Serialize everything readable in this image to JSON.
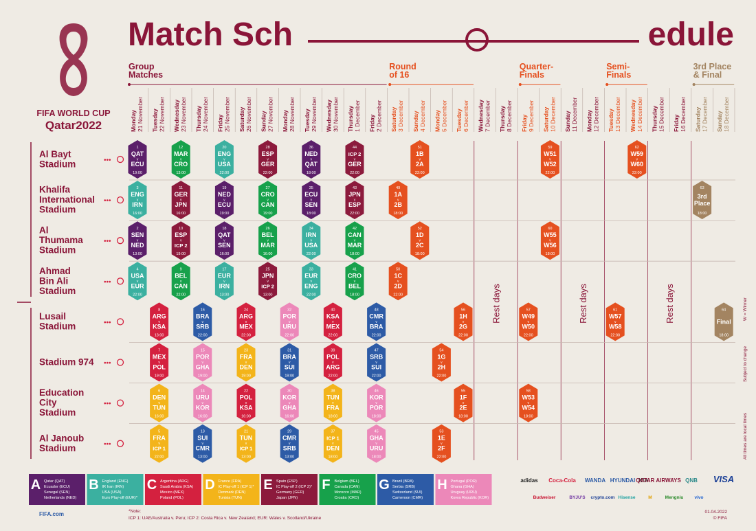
{
  "title": {
    "left": "Match Sch",
    "right": "edule"
  },
  "logo": {
    "line1": "FIFA WORLD CUP",
    "line2": "Qatar2022"
  },
  "stages": [
    {
      "label": [
        "Group",
        "Matches"
      ],
      "start": 0,
      "end": 11,
      "color": "#8a1538"
    },
    {
      "label": [
        "Round",
        "of 16"
      ],
      "start": 12,
      "end": 15,
      "color": "#e5501f"
    },
    {
      "label": [
        "Quarter-",
        "Finals"
      ],
      "start": 18,
      "end": 19,
      "color": "#e5501f"
    },
    {
      "label": [
        "Semi-",
        "Finals"
      ],
      "start": 22,
      "end": 23,
      "color": "#e5501f"
    },
    {
      "label": [
        "3rd Place",
        "& Final"
      ],
      "start": 26,
      "end": 27,
      "color": "#a38461"
    }
  ],
  "dates": [
    {
      "weekday": "Monday",
      "date": "21 November",
      "color": "#8a1538"
    },
    {
      "weekday": "Tuesday",
      "date": "22 November",
      "color": "#8a1538"
    },
    {
      "weekday": "Wednesday",
      "date": "23 November",
      "color": "#8a1538"
    },
    {
      "weekday": "Thursday",
      "date": "24 November",
      "color": "#8a1538"
    },
    {
      "weekday": "Friday",
      "date": "25 November",
      "color": "#8a1538"
    },
    {
      "weekday": "Saturday",
      "date": "26 November",
      "color": "#8a1538"
    },
    {
      "weekday": "Sunday",
      "date": "27 November",
      "color": "#8a1538"
    },
    {
      "weekday": "Monday",
      "date": "28 November",
      "color": "#8a1538"
    },
    {
      "weekday": "Tuesday",
      "date": "29 November",
      "color": "#8a1538"
    },
    {
      "weekday": "Wednesday",
      "date": "30 November",
      "color": "#8a1538"
    },
    {
      "weekday": "Thursday",
      "date": "1 December",
      "color": "#8a1538"
    },
    {
      "weekday": "Friday",
      "date": "2 December",
      "color": "#8a1538"
    },
    {
      "weekday": "Saturday",
      "date": "3 December",
      "color": "#e5501f"
    },
    {
      "weekday": "Sunday",
      "date": "4 December",
      "color": "#e5501f"
    },
    {
      "weekday": "Monday",
      "date": "5 December",
      "color": "#e5501f"
    },
    {
      "weekday": "Tuesday",
      "date": "6 December",
      "color": "#e5501f"
    },
    {
      "weekday": "Wednesday",
      "date": "7 December",
      "color": "#8a1538"
    },
    {
      "weekday": "Thursday",
      "date": "8 December",
      "color": "#8a1538"
    },
    {
      "weekday": "Friday",
      "date": "9 December",
      "color": "#e5501f"
    },
    {
      "weekday": "Saturday",
      "date": "10 December",
      "color": "#e5501f"
    },
    {
      "weekday": "Sunday",
      "date": "11 December",
      "color": "#8a1538"
    },
    {
      "weekday": "Monday",
      "date": "12 December",
      "color": "#8a1538"
    },
    {
      "weekday": "Tuesday",
      "date": "13 December",
      "color": "#e5501f"
    },
    {
      "weekday": "Wednesday",
      "date": "14 December",
      "color": "#e5501f"
    },
    {
      "weekday": "Thursday",
      "date": "15 December",
      "color": "#8a1538"
    },
    {
      "weekday": "Friday",
      "date": "16 December",
      "color": "#8a1538"
    },
    {
      "weekday": "Saturday",
      "date": "17 December",
      "color": "#a38461"
    },
    {
      "weekday": "Sunday",
      "date": "18 December",
      "color": "#a38461"
    }
  ],
  "versus": "v",
  "stadiums": [
    {
      "name": [
        "Al Bayt",
        "Stadium"
      ],
      "matches": [
        {
          "no": 1,
          "day": 0,
          "team1": "QAT",
          "team2": "ECU",
          "time": "19:00",
          "color": "#5b1f6a"
        },
        {
          "no": 12,
          "day": 2,
          "team1": "MAR",
          "team2": "CRO",
          "time": "13:00",
          "color": "#17a14b"
        },
        {
          "no": 20,
          "day": 4,
          "team1": "ENG",
          "team2": "USA",
          "time": "22:00",
          "color": "#3bb0a0"
        },
        {
          "no": 28,
          "day": 6,
          "team1": "ESP",
          "team2": "GER",
          "time": "22:00",
          "color": "#8c1a3c"
        },
        {
          "no": 36,
          "day": 8,
          "team1": "NED",
          "team2": "QAT",
          "time": "18:00",
          "color": "#5b1f6a"
        },
        {
          "no": 44,
          "day": 10,
          "team1": "ICP 2",
          "team2": "GER",
          "time": "22:00",
          "color": "#8c1a3c"
        },
        {
          "no": 51,
          "day": 13,
          "team1": "1B",
          "team2": "2A",
          "time": "22:00",
          "color": "#e5501f"
        },
        {
          "no": 59,
          "day": 19,
          "team1": "W51",
          "team2": "W52",
          "time": "22:00",
          "color": "#e5501f"
        },
        {
          "no": 62,
          "day": 23,
          "team1": "W59",
          "team2": "W60",
          "time": "22:00",
          "color": "#e5501f"
        }
      ]
    },
    {
      "name": [
        "Khalifa",
        "International",
        "Stadium"
      ],
      "matches": [
        {
          "no": 3,
          "day": 0,
          "team1": "ENG",
          "team2": "IRN",
          "time": "16:00",
          "color": "#3bb0a0"
        },
        {
          "no": 11,
          "day": 2,
          "team1": "GER",
          "team2": "JPN",
          "time": "16:00",
          "color": "#8c1a3c"
        },
        {
          "no": 19,
          "day": 4,
          "team1": "NED",
          "team2": "ECU",
          "time": "19:00",
          "color": "#5b1f6a"
        },
        {
          "no": 27,
          "day": 6,
          "team1": "CRO",
          "team2": "CAN",
          "time": "19:00",
          "color": "#17a14b"
        },
        {
          "no": 35,
          "day": 8,
          "team1": "ECU",
          "team2": "SEN",
          "time": "18:00",
          "color": "#5b1f6a"
        },
        {
          "no": 43,
          "day": 10,
          "team1": "JPN",
          "team2": "ESP",
          "time": "22:00",
          "color": "#8c1a3c"
        },
        {
          "no": 49,
          "day": 12,
          "team1": "1A",
          "team2": "2B",
          "time": "18:00",
          "color": "#e5501f"
        },
        {
          "no": 63,
          "day": 26,
          "label": [
            "3rd",
            "Place"
          ],
          "time": "18:00",
          "color": "#a38461"
        }
      ]
    },
    {
      "name": [
        "Al",
        "Thumama",
        "Stadium"
      ],
      "matches": [
        {
          "no": 2,
          "day": 0,
          "team1": "SEN",
          "team2": "NED",
          "time": "13:00",
          "color": "#5b1f6a"
        },
        {
          "no": 10,
          "day": 2,
          "team1": "ESP",
          "team2": "ICP 2",
          "time": "19:00",
          "color": "#8c1a3c"
        },
        {
          "no": 18,
          "day": 4,
          "team1": "QAT",
          "team2": "SEN",
          "time": "16:00",
          "color": "#5b1f6a"
        },
        {
          "no": 26,
          "day": 6,
          "team1": "BEL",
          "team2": "MAR",
          "time": "16:00",
          "color": "#17a14b"
        },
        {
          "no": 34,
          "day": 8,
          "team1": "IRN",
          "team2": "USA",
          "time": "22:00",
          "color": "#3bb0a0"
        },
        {
          "no": 42,
          "day": 10,
          "team1": "CAN",
          "team2": "MAR",
          "time": "18:00",
          "color": "#17a14b"
        },
        {
          "no": 52,
          "day": 13,
          "team1": "1D",
          "team2": "2C",
          "time": "18:00",
          "color": "#e5501f"
        },
        {
          "no": 60,
          "day": 19,
          "team1": "W55",
          "team2": "W56",
          "time": "18:00",
          "color": "#e5501f"
        }
      ]
    },
    {
      "name": [
        "Ahmad",
        "Bin Ali",
        "Stadium"
      ],
      "matches": [
        {
          "no": 4,
          "day": 0,
          "team1": "USA",
          "team2": "EUR",
          "time": "22:00",
          "color": "#3bb0a0"
        },
        {
          "no": 9,
          "day": 2,
          "team1": "BEL",
          "team2": "CAN",
          "time": "22:00",
          "color": "#17a14b"
        },
        {
          "no": 17,
          "day": 4,
          "team1": "EUR",
          "team2": "IRN",
          "time": "13:00",
          "color": "#3bb0a0"
        },
        {
          "no": 25,
          "day": 6,
          "team1": "JPN",
          "team2": "ICP 2",
          "time": "13:00",
          "color": "#8c1a3c"
        },
        {
          "no": 33,
          "day": 8,
          "team1": "EUR",
          "team2": "ENG",
          "time": "22:00",
          "color": "#3bb0a0"
        },
        {
          "no": 41,
          "day": 10,
          "team1": "CRO",
          "team2": "BEL",
          "time": "18:00",
          "color": "#17a14b"
        },
        {
          "no": 50,
          "day": 12,
          "team1": "1C",
          "team2": "2D",
          "time": "22:00",
          "color": "#e5501f"
        }
      ]
    },
    {
      "name": [
        "Lusail",
        "Stadium"
      ],
      "matches": [
        {
          "no": 8,
          "day": 1,
          "team1": "ARG",
          "team2": "KSA",
          "time": "13:00",
          "color": "#d4213f"
        },
        {
          "no": 16,
          "day": 3,
          "team1": "BRA",
          "team2": "SRB",
          "time": "22:00",
          "color": "#2d5ba6"
        },
        {
          "no": 24,
          "day": 5,
          "team1": "ARG",
          "team2": "MEX",
          "time": "22:00",
          "color": "#d4213f"
        },
        {
          "no": 32,
          "day": 7,
          "team1": "POR",
          "team2": "URU",
          "time": "22:00",
          "color": "#ec88b9"
        },
        {
          "no": 40,
          "day": 9,
          "team1": "KSA",
          "team2": "MEX",
          "time": "22:00",
          "color": "#d4213f"
        },
        {
          "no": 48,
          "day": 11,
          "team1": "CMR",
          "team2": "BRA",
          "time": "22:00",
          "color": "#2d5ba6"
        },
        {
          "no": 56,
          "day": 15,
          "team1": "1H",
          "team2": "2G",
          "time": "22:00",
          "color": "#e5501f"
        },
        {
          "no": 57,
          "day": 18,
          "team1": "W49",
          "team2": "W50",
          "time": "22:00",
          "color": "#e5501f"
        },
        {
          "no": 61,
          "day": 22,
          "team1": "W57",
          "team2": "W58",
          "time": "22:00",
          "color": "#e5501f"
        },
        {
          "no": 64,
          "day": 27,
          "label": [
            "Final"
          ],
          "time": "18:00",
          "color": "#a38461"
        }
      ]
    },
    {
      "name": [
        "Stadium 974"
      ],
      "matches": [
        {
          "no": 7,
          "day": 1,
          "team1": "MEX",
          "team2": "POL",
          "time": "19:00",
          "color": "#d4213f"
        },
        {
          "no": 15,
          "day": 3,
          "team1": "POR",
          "team2": "GHA",
          "time": "19:00",
          "color": "#ec88b9"
        },
        {
          "no": 23,
          "day": 5,
          "team1": "FRA",
          "team2": "DEN",
          "time": "19:00",
          "color": "#f3b41a"
        },
        {
          "no": 31,
          "day": 7,
          "team1": "BRA",
          "team2": "SUI",
          "time": "19:00",
          "color": "#2d5ba6"
        },
        {
          "no": 39,
          "day": 9,
          "team1": "POL",
          "team2": "ARG",
          "time": "22:00",
          "color": "#d4213f"
        },
        {
          "no": 47,
          "day": 11,
          "team1": "SRB",
          "team2": "SUI",
          "time": "22:00",
          "color": "#2d5ba6"
        },
        {
          "no": 54,
          "day": 14,
          "team1": "1G",
          "team2": "2H",
          "time": "22:00",
          "color": "#e5501f"
        }
      ]
    },
    {
      "name": [
        "Education",
        "City",
        "Stadium"
      ],
      "matches": [
        {
          "no": 6,
          "day": 1,
          "team1": "DEN",
          "team2": "TUN",
          "time": "16:00",
          "color": "#f3b41a"
        },
        {
          "no": 14,
          "day": 3,
          "team1": "URU",
          "team2": "KOR",
          "time": "16:00",
          "color": "#ec88b9"
        },
        {
          "no": 22,
          "day": 5,
          "team1": "POL",
          "team2": "KSA",
          "time": "16:00",
          "color": "#d4213f"
        },
        {
          "no": 30,
          "day": 7,
          "team1": "KOR",
          "team2": "GHA",
          "time": "16:00",
          "color": "#ec88b9"
        },
        {
          "no": 38,
          "day": 9,
          "team1": "TUN",
          "team2": "FRA",
          "time": "18:00",
          "color": "#f3b41a"
        },
        {
          "no": 46,
          "day": 11,
          "team1": "KOR",
          "team2": "POR",
          "time": "18:00",
          "color": "#ec88b9"
        },
        {
          "no": 55,
          "day": 15,
          "team1": "1F",
          "team2": "2E",
          "time": "18:00",
          "color": "#e5501f"
        },
        {
          "no": 58,
          "day": 18,
          "team1": "W53",
          "team2": "W54",
          "time": "18:00",
          "color": "#e5501f"
        }
      ]
    },
    {
      "name": [
        "Al Janoub",
        "Stadium"
      ],
      "matches": [
        {
          "no": 5,
          "day": 1,
          "team1": "FRA",
          "team2": "ICP 1",
          "time": "22:00",
          "color": "#f3b41a"
        },
        {
          "no": 13,
          "day": 3,
          "team1": "SUI",
          "team2": "CMR",
          "time": "13:00",
          "color": "#2d5ba6"
        },
        {
          "no": 21,
          "day": 5,
          "team1": "TUN",
          "team2": "ICP 1",
          "time": "13:00",
          "color": "#f3b41a"
        },
        {
          "no": 29,
          "day": 7,
          "team1": "CMR",
          "team2": "SRB",
          "time": "13:00",
          "color": "#2d5ba6"
        },
        {
          "no": 37,
          "day": 9,
          "team1": "ICP 1",
          "team2": "DEN",
          "time": "18:00",
          "color": "#f3b41a"
        },
        {
          "no": 45,
          "day": 11,
          "team1": "GHA",
          "team2": "URU",
          "time": "18:00",
          "color": "#ec88b9"
        },
        {
          "no": 53,
          "day": 14,
          "team1": "1E",
          "team2": "2F",
          "time": "22:00",
          "color": "#e5501f"
        }
      ]
    }
  ],
  "rest_days": {
    "label": "Rest days",
    "days": [
      [
        16,
        17
      ],
      [
        20,
        21
      ],
      [
        24,
        25
      ]
    ]
  },
  "groups": [
    {
      "letter": "A",
      "color": "#5b1f6a",
      "teams": [
        "Qatar (QAT)",
        "Ecuador (ECU)",
        "Senegal (SEN)",
        "Netherlands (NED)"
      ]
    },
    {
      "letter": "B",
      "color": "#3bb0a0",
      "teams": [
        "England (ENG)",
        "IR Iran (IRN)",
        "USA (USA)",
        "Euro Play-off (EUR)*"
      ]
    },
    {
      "letter": "C",
      "color": "#d4213f",
      "teams": [
        "Argentina (ARG)",
        "Saudi Arabia (KSA)",
        "Mexico (MEX)",
        "Poland (POL)"
      ]
    },
    {
      "letter": "D",
      "color": "#f3b41a",
      "teams": [
        "France (FRA)",
        "IC Play-off 1 (ICP 1)*",
        "Denmark (DEN)",
        "Tunisia (TUN)"
      ]
    },
    {
      "letter": "E",
      "color": "#8c1a3c",
      "teams": [
        "Spain (ESP)",
        "IC Play-off 2 (ICP 2)*",
        "Germany (GER)",
        "Japan (JPN)"
      ]
    },
    {
      "letter": "F",
      "color": "#17a14b",
      "teams": [
        "Belgium (BEL)",
        "Canada (CAN)",
        "Morocco (MAR)",
        "Croatia (CRO)"
      ]
    },
    {
      "letter": "G",
      "color": "#2d5ba6",
      "teams": [
        "Brazil (BRA)",
        "Serbia (SRB)",
        "Switzerland (SUI)",
        "Cameroon (CMR)"
      ]
    },
    {
      "letter": "H",
      "color": "#ec88b9",
      "teams": [
        "Portugal (POR)",
        "Ghana (GHA)",
        "Uruguay (URU)",
        "Korea Republic (KOR)"
      ]
    }
  ],
  "side_notes": [
    "W = Winner",
    "Subject to change",
    "All times are local times"
  ],
  "footer": {
    "site": "FIFA.com",
    "note_title": "*Note:",
    "note": "ICP 1: UAE/Australia v. Peru;  ICP 2: Costa Rica v. New Zealand;  EUR: Wales v. Scotland/Ukraine",
    "date": "01.04.2022",
    "copyright": "© FIFA"
  },
  "sponsors": [
    [
      "adidas",
      "Coca-Cola",
      "WANDA",
      "HYUNDAI",
      "KIA",
      "QATAR AIRWAYS",
      "QNB",
      "VISA"
    ],
    [
      "Budweiser",
      "BYJU'S",
      "crypto.com",
      "Hisense",
      "M",
      "Mengniu",
      "vivo"
    ]
  ]
}
